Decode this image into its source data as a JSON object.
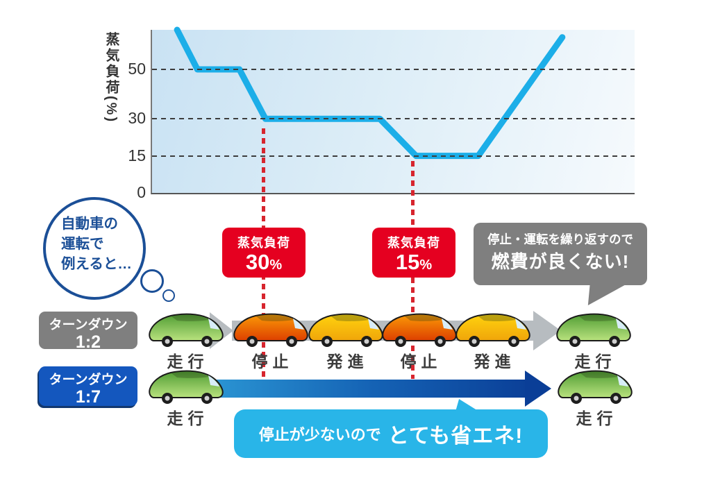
{
  "chart": {
    "y_axis_label": "蒸気負荷(%)"
  },
  "chart_data": {
    "type": "line",
    "title": "",
    "xlabel": "",
    "ylabel": "蒸気負荷(%)",
    "ylim": [
      0,
      66
    ],
    "x_range": [
      0,
      100
    ],
    "grid": true,
    "legend": false,
    "y_ticks": [
      50,
      30,
      15,
      0
    ],
    "gridlines_y": [
      50,
      30,
      15
    ],
    "line_color": "#1caee8",
    "series": [
      {
        "name": "蒸気負荷",
        "x": [
          5.2,
          9.4,
          18.1,
          23.5,
          47.2,
          54.7,
          67.6,
          85.0
        ],
        "y": [
          66,
          50,
          50,
          30,
          30,
          15,
          15,
          63
        ]
      }
    ],
    "annotations": [
      {
        "x": 23.5,
        "label": "蒸気負荷 30%"
      },
      {
        "x": 54.4,
        "label": "蒸気負荷 15%"
      }
    ]
  },
  "steam_labels": [
    {
      "title": "蒸気負荷",
      "value": "30",
      "unit": "%"
    },
    {
      "title": "蒸気負荷",
      "value": "15",
      "unit": "%"
    }
  ],
  "thought_bubble": {
    "lines": [
      "自動車の",
      "運転で",
      "例えると…"
    ]
  },
  "gray_callout": {
    "line1": "停止・運転を繰り返すので",
    "line2": "燃費が良くない!"
  },
  "rows": [
    {
      "badge": {
        "line1": "ターンダウン",
        "line2": "1:2"
      },
      "badge_color": "#7f7f7f",
      "cars": [
        {
          "color": "green",
          "label": "走行"
        },
        {
          "color": "orange",
          "label": "停止"
        },
        {
          "color": "yellow",
          "label": "発進"
        },
        {
          "color": "orange",
          "label": "停止"
        },
        {
          "color": "yellow",
          "label": "発進"
        },
        {
          "color": "green",
          "label": "走行"
        }
      ]
    },
    {
      "badge": {
        "line1": "ターンダウン",
        "line2": "1:7"
      },
      "badge_color": "#1457be",
      "cars": [
        {
          "color": "green",
          "label": "走行"
        },
        {
          "color": "green",
          "label": "走行"
        }
      ]
    }
  ],
  "cyan_banner": {
    "normal": "停止が少ないので",
    "bold": "とても省エネ!"
  },
  "colors": {
    "line": "#1caee8",
    "red_box": "#e50020",
    "red_dash": "#d7252e",
    "gray_bubble": "#7f7f7f",
    "blue_badge": "#1457be",
    "cyan_banner": "#29b5e8",
    "arrow_gray": "#b7bcc0",
    "arrow_blue_start": "#2f9fd9",
    "arrow_blue_end": "#0b4098",
    "thought_blue": "#1b4f97",
    "car": {
      "green": [
        "#4f9c33",
        "#b9e27e"
      ],
      "orange": [
        "#fb9b07",
        "#dd3f00"
      ],
      "yellow": [
        "#ffd30e",
        "#f0a50a"
      ]
    }
  }
}
